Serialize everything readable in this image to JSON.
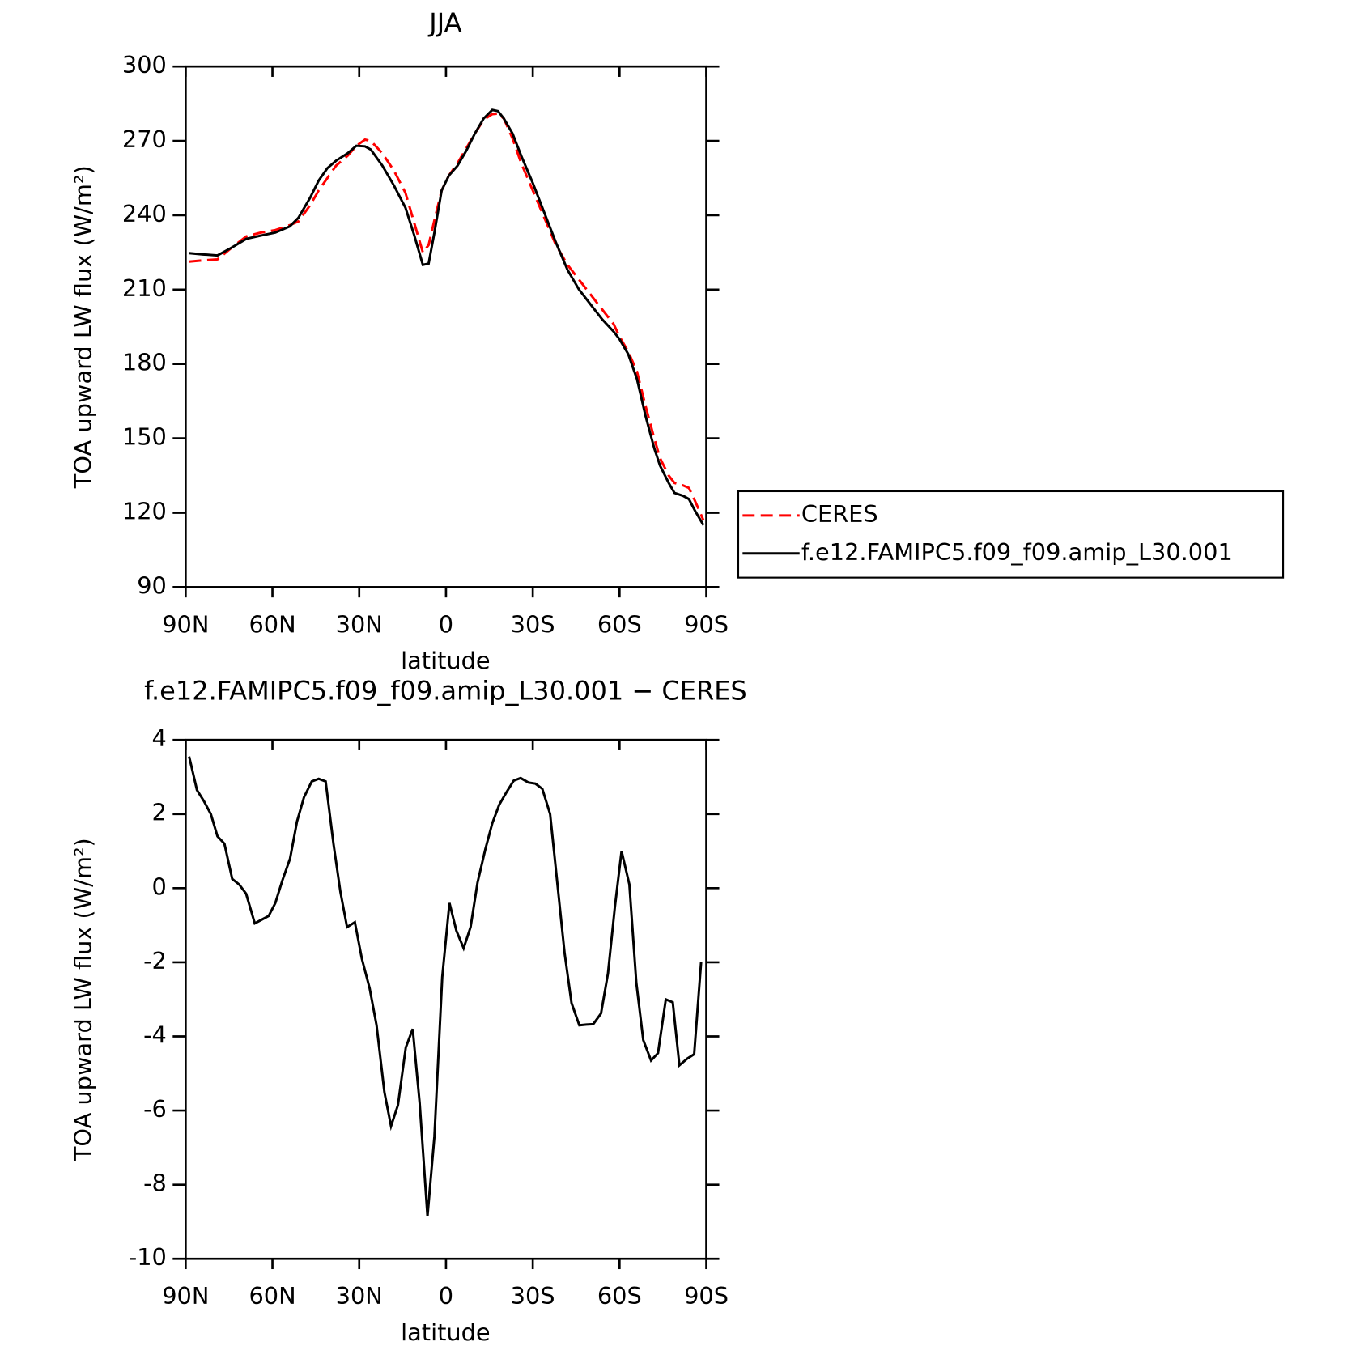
{
  "chart_data": [
    {
      "type": "line",
      "title": "JJA",
      "xlabel": "latitude",
      "ylabel": "TOA upward LW flux (W/m²)",
      "x": [
        88.8,
        84,
        79,
        74,
        69,
        64,
        59,
        54,
        51,
        47,
        44,
        41,
        38,
        34,
        31,
        28,
        26,
        22,
        18,
        14,
        11,
        8,
        6,
        4,
        1.5,
        -1,
        -4,
        -7,
        -10,
        -13,
        -16,
        -18,
        -20,
        -23,
        -26,
        -30,
        -34,
        -38,
        -42,
        -46,
        -50,
        -54,
        -58,
        -60,
        -63,
        -66,
        -69,
        -72,
        -74,
        -77,
        -79,
        -82,
        -84,
        -86,
        -89
      ],
      "series": [
        {
          "name": "CERES",
          "color": "#ff0000",
          "dash": true,
          "values": [
            221.3,
            221.8,
            222.2,
            227,
            231.5,
            233,
            234,
            236,
            237.5,
            244,
            250,
            255,
            260,
            264,
            268,
            270.5,
            270,
            265,
            258,
            249,
            237,
            225,
            228,
            238,
            250,
            256,
            261,
            267,
            273,
            278.5,
            280.8,
            281,
            279,
            271,
            261,
            250,
            239,
            228,
            220,
            214,
            208,
            202,
            196,
            191,
            185,
            177,
            163,
            150,
            142,
            135,
            132,
            131,
            130,
            125,
            117
          ]
        },
        {
          "name": "f.e12.FAMIPC5.f09_f09.amip_L30.001",
          "color": "#000000",
          "dash": false,
          "values": [
            224.7,
            224.2,
            223.8,
            227,
            230.5,
            231.8,
            233,
            235.5,
            239,
            247,
            254,
            259,
            262,
            265,
            268,
            267.8,
            266.5,
            260,
            252,
            243,
            232,
            220,
            220.5,
            233,
            250,
            256,
            260,
            266,
            273,
            279,
            282.5,
            282,
            279,
            273,
            264,
            253,
            241,
            229,
            218,
            210,
            204,
            198,
            193,
            190,
            184,
            174,
            159,
            146,
            139,
            132,
            128,
            126.8,
            125.5,
            121,
            115
          ]
        }
      ],
      "xlim": [
        90,
        -90
      ],
      "xticks": [
        {
          "value": 90,
          "label": "90N"
        },
        {
          "value": 60,
          "label": "60N"
        },
        {
          "value": 30,
          "label": "30N"
        },
        0,
        {
          "value": -30,
          "label": "30S"
        },
        {
          "value": -60,
          "label": "60S"
        },
        {
          "value": -90,
          "label": "90S"
        }
      ],
      "ylim": [
        90,
        300
      ],
      "yticks": [
        90,
        120,
        150,
        180,
        210,
        240,
        270,
        300
      ],
      "legend": "right"
    },
    {
      "type": "line",
      "title": "f.e12.FAMIPC5.f09_f09.amip_L30.001 − CERES",
      "xlabel": "latitude",
      "ylabel": "TOA upward LW flux (W/m²)",
      "x": [
        88.8,
        86.1,
        83.7,
        81.3,
        79,
        76.6,
        73.9,
        71.5,
        69.1,
        66.1,
        63.7,
        61.3,
        59,
        56.6,
        53.9,
        51.5,
        49.1,
        46.4,
        44,
        41.6,
        38.9,
        36.5,
        34.2,
        31.5,
        29.1,
        26.4,
        24,
        21.3,
        19,
        16.6,
        13.9,
        11.5,
        9.1,
        6.4,
        4,
        1.3,
        -1.2,
        -3.6,
        -6.1,
        -8.5,
        -10.9,
        -13.6,
        -16,
        -18.4,
        -21,
        -23.4,
        -25.8,
        -28.5,
        -30.9,
        -33.3,
        -36,
        -38.4,
        -41,
        -43.4,
        -46.1,
        -48.5,
        -50.9,
        -53.6,
        -56,
        -58.4,
        -60.7,
        -63.4,
        -65.8,
        -68.2,
        -70.9,
        -73.3,
        -76,
        -78.4,
        -80.7,
        -83.4,
        -85.8,
        -88.2
      ],
      "series": [
        {
          "color": "#000000",
          "dash": false,
          "values": [
            3.55,
            2.65,
            2.35,
            2.0,
            1.4,
            1.2,
            0.25,
            0.1,
            -0.15,
            -0.95,
            -0.85,
            -0.75,
            -0.4,
            0.2,
            0.8,
            1.8,
            2.45,
            2.88,
            2.95,
            2.88,
            1.2,
            -0.1,
            -1.05,
            -0.92,
            -1.9,
            -2.7,
            -3.7,
            -5.5,
            -6.42,
            -5.85,
            -4.3,
            -3.8,
            -5.8,
            -8.85,
            -6.7,
            -2.4,
            -0.4,
            -1.15,
            -1.62,
            -1.05,
            0.15,
            1.05,
            1.75,
            2.25,
            2.6,
            2.9,
            2.97,
            2.85,
            2.82,
            2.68,
            2.0,
            0.2,
            -1.75,
            -3.1,
            -3.7,
            -3.68,
            -3.67,
            -3.38,
            -2.3,
            -0.5,
            1.0,
            0.1,
            -2.55,
            -4.1,
            -4.65,
            -4.45,
            -3.0,
            -3.08,
            -4.78,
            -4.6,
            -4.48,
            -2.0
          ]
        }
      ],
      "xlim": [
        90,
        -90
      ],
      "xticks": [
        {
          "value": 90,
          "label": "90N"
        },
        {
          "value": 60,
          "label": "60N"
        },
        {
          "value": 30,
          "label": "30N"
        },
        0,
        {
          "value": -30,
          "label": "30S"
        },
        {
          "value": -60,
          "label": "60S"
        },
        {
          "value": -90,
          "label": "90S"
        }
      ],
      "ylim": [
        -10,
        4
      ],
      "yticks": [
        -10,
        -8,
        -6,
        -4,
        -2,
        0,
        2,
        4
      ]
    }
  ]
}
